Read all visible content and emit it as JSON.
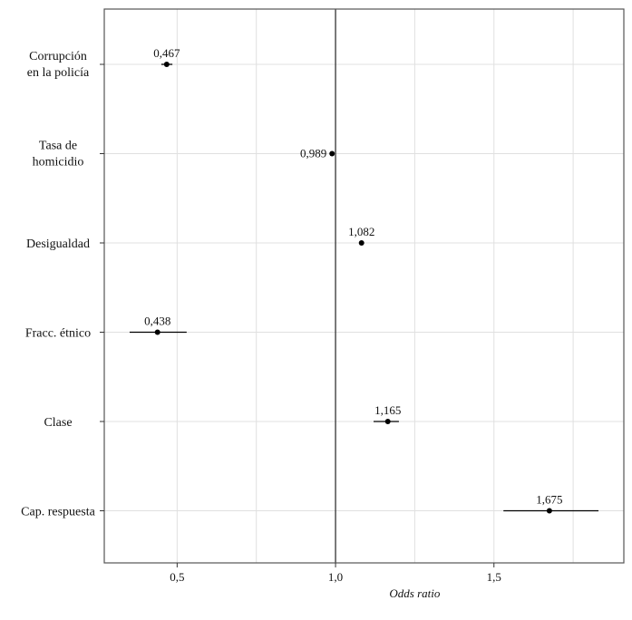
{
  "chart_data": {
    "type": "scatter",
    "subtype": "forest-plot",
    "title": "",
    "xlabel": "Odds ratio",
    "ylabel": "",
    "xlim": [
      0.27,
      1.91
    ],
    "xticks": [
      0.5,
      1.0,
      1.5
    ],
    "xtick_labels": [
      "0,5",
      "1,0",
      "1,5"
    ],
    "reference_line": 1.0,
    "grid": true,
    "legend": "none",
    "categories": [
      [
        "Corrupción",
        "en la policía"
      ],
      [
        "Tasa de",
        "homicidio"
      ],
      [
        "Desigualdad"
      ],
      [
        "Fracc. étnico"
      ],
      [
        "Clase"
      ],
      [
        "Cap. respuesta"
      ]
    ],
    "series": [
      {
        "values": [
          0.467,
          0.989,
          1.082,
          0.438,
          1.165,
          1.675
        ],
        "value_labels": [
          "0,467",
          "0,989",
          "1,082",
          "0,438",
          "1,165",
          "1,675"
        ],
        "ci_low": [
          0.45,
          0.989,
          1.082,
          0.35,
          1.12,
          1.53
        ],
        "ci_high": [
          0.485,
          0.989,
          1.082,
          0.53,
          1.2,
          1.83
        ],
        "label_position": [
          "above",
          "left",
          "above",
          "above",
          "above",
          "above"
        ]
      }
    ],
    "colors": {
      "point": "#000000",
      "grid": "#e0e0e0",
      "frame": "#555555",
      "reference": "#333333"
    }
  }
}
